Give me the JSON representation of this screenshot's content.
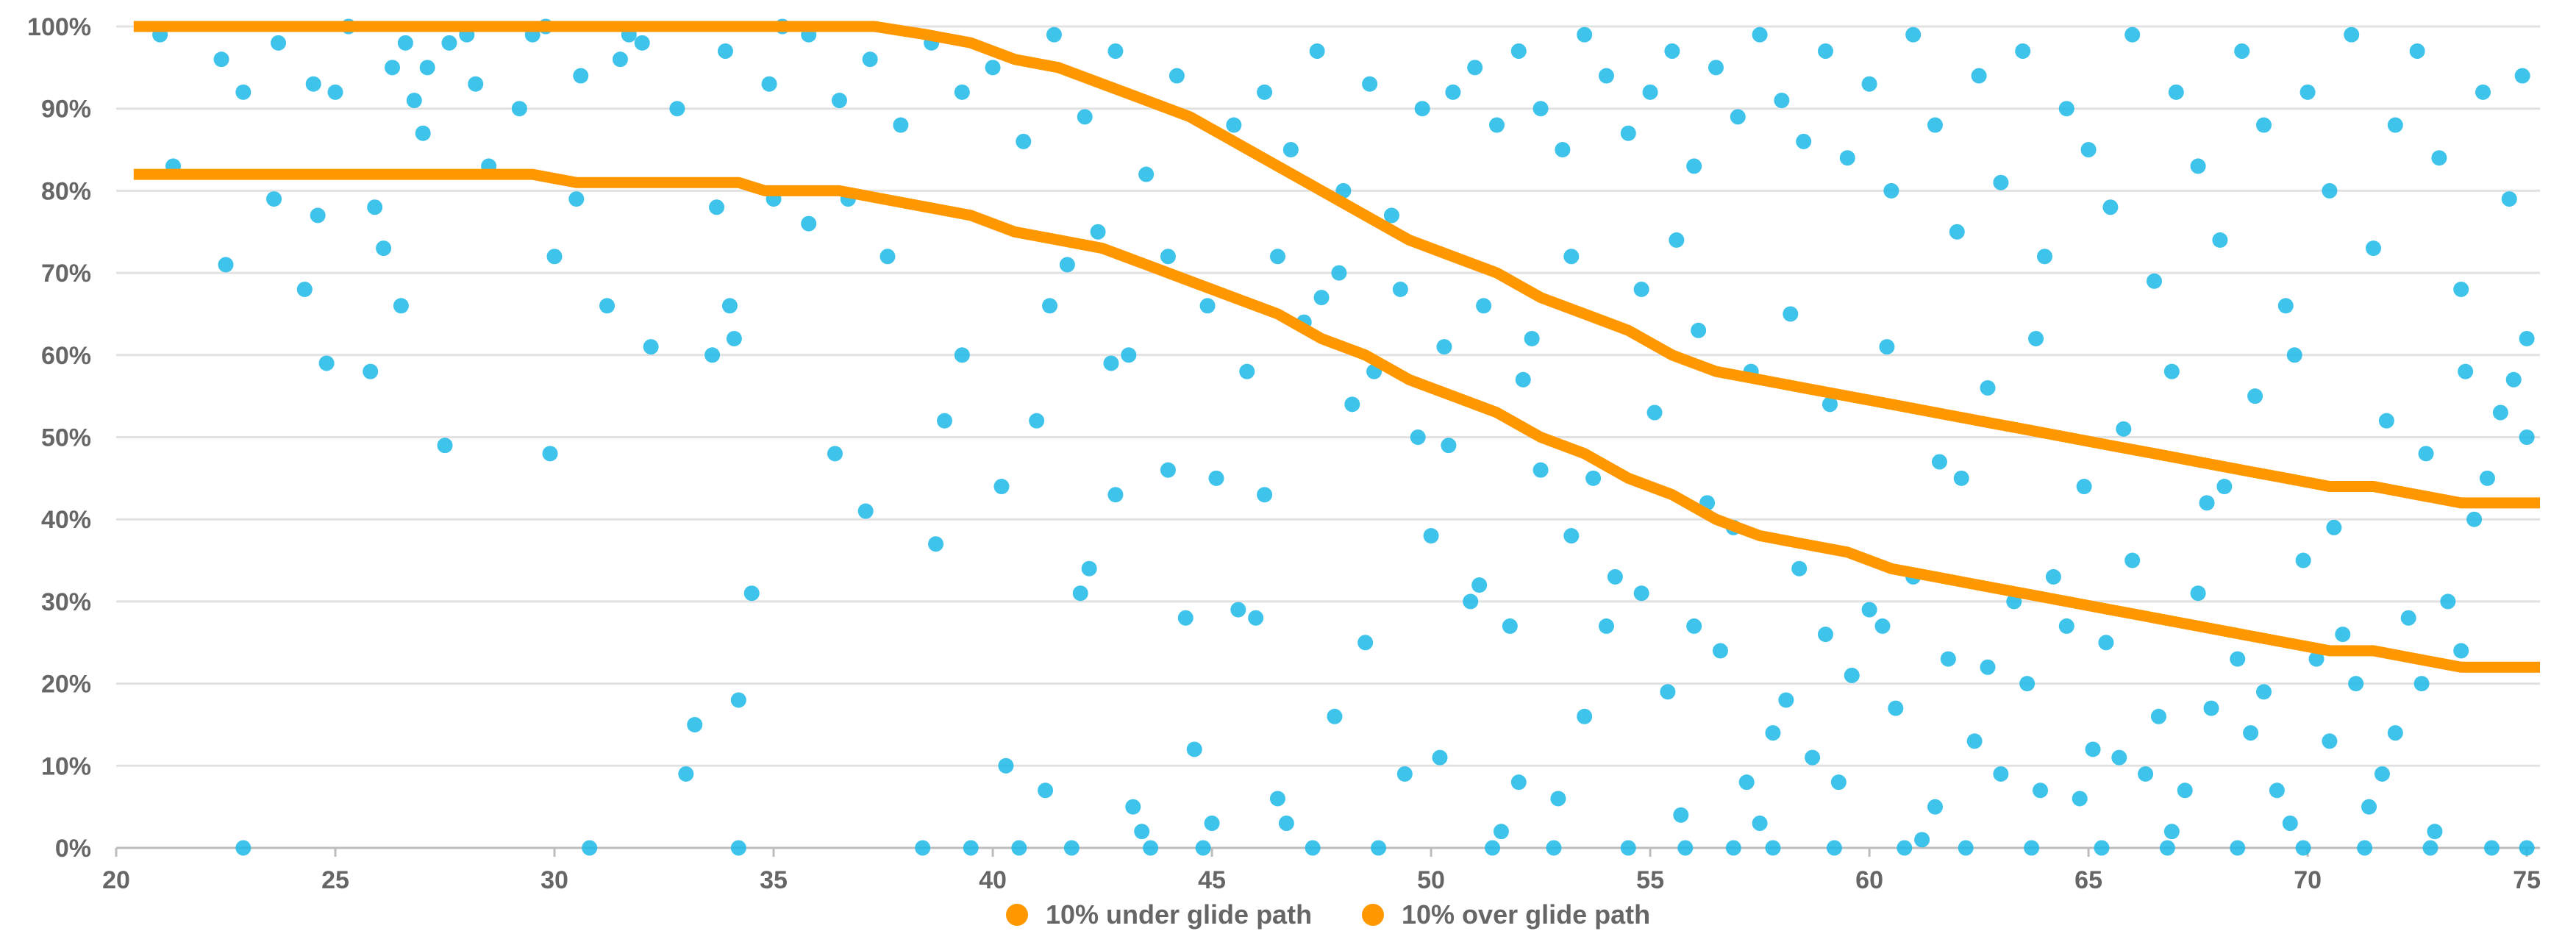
{
  "chart_data": {
    "type": "scatter",
    "title": "",
    "xlabel": "",
    "ylabel": "",
    "xlim": [
      20,
      75.3
    ],
    "ylim": [
      0,
      100
    ],
    "x_ticks": [
      "20",
      "25",
      "30",
      "35",
      "40",
      "45",
      "50",
      "55",
      "60",
      "65",
      "70",
      "75"
    ],
    "y_ticks": [
      "0%",
      "10%",
      "20%",
      "30%",
      "40%",
      "50%",
      "60%",
      "70%",
      "80%",
      "90%",
      "100%"
    ],
    "grid": "horizontal",
    "legend_position": "bottom-center",
    "scatter": {
      "color": "#1cb8e8",
      "points": [
        [
          21,
          99
        ],
        [
          21.3,
          83
        ],
        [
          22.4,
          96
        ],
        [
          22.5,
          71
        ],
        [
          22.9,
          92
        ],
        [
          22.9,
          0
        ],
        [
          23.6,
          79
        ],
        [
          23.7,
          98
        ],
        [
          24.3,
          68
        ],
        [
          24.5,
          93
        ],
        [
          24.6,
          77
        ],
        [
          24.8,
          59
        ],
        [
          25,
          92
        ],
        [
          25.3,
          100
        ],
        [
          25.8,
          58
        ],
        [
          25.9,
          78
        ],
        [
          26.1,
          73
        ],
        [
          26.5,
          66
        ],
        [
          26.6,
          98
        ],
        [
          27,
          87
        ],
        [
          27.1,
          95
        ],
        [
          27.5,
          49
        ],
        [
          28,
          99
        ],
        [
          28.5,
          83
        ],
        [
          29.5,
          99
        ],
        [
          29.8,
          100
        ],
        [
          29.9,
          48
        ],
        [
          30,
          72
        ],
        [
          30.5,
          79
        ],
        [
          30.8,
          0
        ],
        [
          31.2,
          66
        ],
        [
          31.5,
          96
        ],
        [
          32,
          98
        ],
        [
          32.2,
          61
        ],
        [
          33,
          9
        ],
        [
          33.2,
          15
        ],
        [
          33.6,
          60
        ],
        [
          33.7,
          78
        ],
        [
          34,
          66
        ],
        [
          34.1,
          62
        ],
        [
          34.2,
          18
        ],
        [
          34.2,
          0
        ],
        [
          34.5,
          31
        ],
        [
          35,
          79
        ],
        [
          35.2,
          100
        ],
        [
          35.8,
          76
        ],
        [
          36.4,
          48
        ],
        [
          36.7,
          79
        ],
        [
          37.1,
          41
        ],
        [
          37.6,
          72
        ],
        [
          38.4,
          0
        ],
        [
          38.7,
          37
        ],
        [
          38.9,
          52
        ],
        [
          39.3,
          60
        ],
        [
          39.5,
          0
        ],
        [
          40.2,
          44
        ],
        [
          40.3,
          10
        ],
        [
          40.6,
          0
        ],
        [
          41,
          52
        ],
        [
          41.2,
          7
        ],
        [
          41.3,
          66
        ],
        [
          41.8,
          0
        ],
        [
          42,
          31
        ],
        [
          42.2,
          34
        ],
        [
          42.7,
          59
        ],
        [
          42.8,
          43
        ],
        [
          43.2,
          5
        ],
        [
          43.4,
          2
        ],
        [
          43.6,
          0
        ],
        [
          44,
          46
        ],
        [
          44.4,
          28
        ],
        [
          44.6,
          12
        ],
        [
          44.8,
          0
        ],
        [
          45,
          3
        ],
        [
          45.1,
          45
        ],
        [
          45.6,
          29
        ],
        [
          46,
          28
        ],
        [
          46.2,
          43
        ],
        [
          46.5,
          6
        ],
        [
          46.7,
          3
        ],
        [
          47.3,
          0
        ],
        [
          47.5,
          67
        ],
        [
          47.8,
          16
        ],
        [
          48.2,
          54
        ],
        [
          48.5,
          25
        ],
        [
          48.8,
          0
        ],
        [
          49.4,
          9
        ],
        [
          49.7,
          50
        ],
        [
          50,
          38
        ],
        [
          50.2,
          11
        ],
        [
          50.4,
          49
        ],
        [
          50.9,
          30
        ],
        [
          51.1,
          32
        ],
        [
          51.6,
          2
        ],
        [
          51.8,
          27
        ],
        [
          52,
          8
        ],
        [
          52.3,
          62
        ],
        [
          52.5,
          46
        ],
        [
          52.9,
          6
        ],
        [
          53.2,
          38
        ],
        [
          53.5,
          16
        ],
        [
          53.7,
          45
        ],
        [
          54,
          27
        ],
        [
          54.2,
          33
        ],
        [
          54.5,
          0
        ],
        [
          54.8,
          31
        ],
        [
          55.1,
          53
        ],
        [
          55.4,
          19
        ],
        [
          55.7,
          4
        ],
        [
          56,
          27
        ],
        [
          56.3,
          42
        ],
        [
          56.6,
          24
        ],
        [
          56.9,
          39
        ],
        [
          57.2,
          8
        ],
        [
          57.5,
          3
        ],
        [
          57.8,
          14
        ],
        [
          58.1,
          18
        ],
        [
          58.4,
          34
        ],
        [
          58.7,
          11
        ],
        [
          59,
          26
        ],
        [
          59.3,
          8
        ],
        [
          59.6,
          21
        ],
        [
          60,
          29
        ],
        [
          60.3,
          27
        ],
        [
          60.6,
          17
        ],
        [
          61,
          33
        ],
        [
          61.2,
          1
        ],
        [
          61.5,
          5
        ],
        [
          61.8,
          23
        ],
        [
          62.1,
          45
        ],
        [
          62.4,
          13
        ],
        [
          62.7,
          22
        ],
        [
          63,
          9
        ],
        [
          63.3,
          30
        ],
        [
          63.6,
          20
        ],
        [
          63.9,
          7
        ],
        [
          64.2,
          33
        ],
        [
          64.5,
          27
        ],
        [
          64.8,
          6
        ],
        [
          65.1,
          12
        ],
        [
          65.4,
          25
        ],
        [
          65.7,
          11
        ],
        [
          66,
          35
        ],
        [
          66.3,
          9
        ],
        [
          66.6,
          16
        ],
        [
          66.9,
          2
        ],
        [
          67.2,
          7
        ],
        [
          67.5,
          31
        ],
        [
          67.8,
          17
        ],
        [
          68.1,
          44
        ],
        [
          68.4,
          23
        ],
        [
          68.7,
          14
        ],
        [
          69,
          19
        ],
        [
          69.3,
          7
        ],
        [
          69.6,
          3
        ],
        [
          69.9,
          35
        ],
        [
          70.2,
          23
        ],
        [
          70.5,
          13
        ],
        [
          70.8,
          26
        ],
        [
          71.1,
          20
        ],
        [
          71.4,
          5
        ],
        [
          71.7,
          9
        ],
        [
          72,
          14
        ],
        [
          72.3,
          28
        ],
        [
          72.6,
          20
        ],
        [
          72.9,
          2
        ],
        [
          73.2,
          30
        ],
        [
          73.5,
          24
        ],
        [
          73.8,
          40
        ],
        [
          74.1,
          45
        ],
        [
          74.4,
          53
        ],
        [
          74.7,
          57
        ],
        [
          75,
          50
        ],
        [
          75,
          62
        ],
        [
          74.6,
          79
        ],
        [
          74.9,
          94
        ],
        [
          50.5,
          92
        ],
        [
          51,
          95
        ],
        [
          51.5,
          88
        ],
        [
          52,
          97
        ],
        [
          52.5,
          90
        ],
        [
          53,
          85
        ],
        [
          53.5,
          99
        ],
        [
          54,
          94
        ],
        [
          54.5,
          87
        ],
        [
          55,
          92
        ],
        [
          55.5,
          97
        ],
        [
          56,
          83
        ],
        [
          56.5,
          95
        ],
        [
          57,
          89
        ],
        [
          57.5,
          99
        ],
        [
          58,
          91
        ],
        [
          58.5,
          86
        ],
        [
          59,
          97
        ],
        [
          59.5,
          84
        ],
        [
          60,
          93
        ],
        [
          60.5,
          80
        ],
        [
          61,
          99
        ],
        [
          61.5,
          88
        ],
        [
          62,
          75
        ],
        [
          62.5,
          94
        ],
        [
          63,
          81
        ],
        [
          63.5,
          97
        ],
        [
          64,
          72
        ],
        [
          64.5,
          90
        ],
        [
          65,
          85
        ],
        [
          65.5,
          78
        ],
        [
          66,
          99
        ],
        [
          66.5,
          69
        ],
        [
          67,
          92
        ],
        [
          67.5,
          83
        ],
        [
          68,
          74
        ],
        [
          68.5,
          97
        ],
        [
          69,
          88
        ],
        [
          69.5,
          66
        ],
        [
          70,
          92
        ],
        [
          70.5,
          80
        ],
        [
          71,
          99
        ],
        [
          71.5,
          73
        ],
        [
          72,
          88
        ],
        [
          72.5,
          97
        ],
        [
          73,
          84
        ],
        [
          73.5,
          68
        ],
        [
          74,
          92
        ],
        [
          53.2,
          72
        ],
        [
          54.8,
          68
        ],
        [
          55.6,
          74
        ],
        [
          56.1,
          63
        ],
        [
          57.3,
          58
        ],
        [
          58.2,
          65
        ],
        [
          59.1,
          54
        ],
        [
          60.4,
          61
        ],
        [
          61.6,
          47
        ],
        [
          62.7,
          56
        ],
        [
          63.8,
          62
        ],
        [
          64.9,
          44
        ],
        [
          65.8,
          51
        ],
        [
          66.9,
          58
        ],
        [
          67.7,
          42
        ],
        [
          68.8,
          55
        ],
        [
          69.7,
          60
        ],
        [
          70.6,
          39
        ],
        [
          71.8,
          52
        ],
        [
          72.7,
          48
        ],
        [
          73.6,
          58
        ],
        [
          45.5,
          88
        ],
        [
          46.2,
          92
        ],
        [
          46.8,
          85
        ],
        [
          47.4,
          97
        ],
        [
          48,
          80
        ],
        [
          48.6,
          93
        ],
        [
          49.1,
          77
        ],
        [
          49.8,
          90
        ],
        [
          44.2,
          94
        ],
        [
          43.5,
          82
        ],
        [
          42.8,
          97
        ],
        [
          42.1,
          89
        ],
        [
          41.4,
          99
        ],
        [
          40.7,
          86
        ],
        [
          40,
          95
        ],
        [
          39.3,
          92
        ],
        [
          38.6,
          98
        ],
        [
          37.9,
          88
        ],
        [
          37.2,
          96
        ],
        [
          36.5,
          91
        ],
        [
          35.8,
          99
        ],
        [
          34.9,
          93
        ],
        [
          33.9,
          97
        ],
        [
          32.8,
          90
        ],
        [
          31.7,
          99
        ],
        [
          30.6,
          94
        ],
        [
          29.2,
          90
        ],
        [
          28.2,
          93
        ],
        [
          27.6,
          98
        ],
        [
          26.8,
          91
        ],
        [
          26.3,
          95
        ],
        [
          46.5,
          72
        ],
        [
          47.1,
          64
        ],
        [
          47.9,
          70
        ],
        [
          48.7,
          58
        ],
        [
          49.3,
          68
        ],
        [
          50.3,
          61
        ],
        [
          51.2,
          66
        ],
        [
          52.1,
          57
        ],
        [
          45.8,
          58
        ],
        [
          44.9,
          66
        ],
        [
          44,
          72
        ],
        [
          43.1,
          60
        ],
        [
          42.4,
          75
        ],
        [
          41.7,
          71
        ],
        [
          57.8,
          0
        ],
        [
          59.2,
          0
        ],
        [
          60.8,
          0
        ],
        [
          62.2,
          0
        ],
        [
          63.7,
          0
        ],
        [
          65.3,
          0
        ],
        [
          66.8,
          0
        ],
        [
          68.4,
          0
        ],
        [
          69.9,
          0
        ],
        [
          71.3,
          0
        ],
        [
          72.8,
          0
        ],
        [
          74.2,
          0
        ],
        [
          75,
          0
        ],
        [
          55.8,
          0
        ],
        [
          56.9,
          0
        ],
        [
          52.8,
          0
        ],
        [
          51.4,
          0
        ]
      ]
    },
    "series": [
      {
        "name": "10% under glide path",
        "color": "#ff9800",
        "x": [
          20.4,
          29.5,
          30.5,
          32,
          34.2,
          34.8,
          36.5,
          37.5,
          38.5,
          39.5,
          40.5,
          41.5,
          42.5,
          43.5,
          44.5,
          45.5,
          46.5,
          47.5,
          48.5,
          49.5,
          50.5,
          51.5,
          52.5,
          53.5,
          54.5,
          55.5,
          56.5,
          57.5,
          58.5,
          59.5,
          60.5,
          61.5,
          62.5,
          63.5,
          64.5,
          65.5,
          66.5,
          67.5,
          68.5,
          69.5,
          70.5,
          71.5,
          72.5,
          73.5,
          75.3
        ],
        "y": [
          82,
          82,
          81,
          81,
          81,
          80,
          80,
          79,
          78,
          77,
          75,
          74,
          73,
          71,
          69,
          67,
          65,
          62,
          60,
          57,
          55,
          53,
          50,
          48,
          45,
          43,
          40,
          38,
          37,
          36,
          34,
          33,
          32,
          31,
          30,
          29,
          28,
          27,
          26,
          25,
          24,
          24,
          23,
          22,
          22
        ]
      },
      {
        "name": "10% over glide path",
        "color": "#ff9800",
        "x": [
          20.4,
          37.3,
          38.5,
          39.5,
          40.5,
          41.5,
          42.5,
          43.5,
          44.5,
          45.5,
          46.5,
          47.5,
          48.5,
          49.5,
          50.5,
          51.5,
          52.5,
          53.5,
          54.5,
          55.5,
          56.5,
          57.5,
          58.5,
          59.5,
          60.5,
          61.5,
          62.5,
          63.5,
          64.5,
          65.5,
          66.5,
          67.5,
          68.5,
          69.5,
          70.5,
          71.5,
          72.5,
          73.5,
          75.3
        ],
        "y": [
          100,
          100,
          99,
          98,
          96,
          95,
          93,
          91,
          89,
          86,
          83,
          80,
          77,
          74,
          72,
          70,
          67,
          65,
          63,
          60,
          58,
          57,
          56,
          55,
          54,
          53,
          52,
          51,
          50,
          49,
          48,
          47,
          46,
          45,
          44,
          44,
          43,
          42,
          42
        ]
      }
    ]
  }
}
